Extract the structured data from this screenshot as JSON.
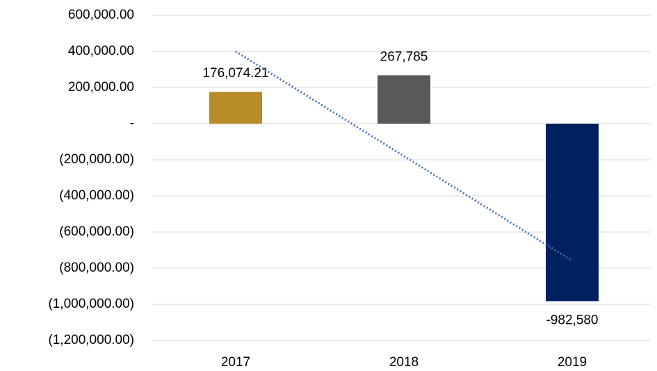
{
  "chart_data": {
    "type": "bar",
    "categories": [
      "2017",
      "2018",
      "2019"
    ],
    "series": [
      {
        "values": [
          176074.21,
          267785,
          -982580
        ],
        "value_labels": [
          "176,074.21",
          "267,785",
          "-982,580"
        ],
        "colors": [
          "#b68d27",
          "#595959",
          "#002060"
        ]
      }
    ],
    "trendline": {
      "type": "linear",
      "color": "#4472c4",
      "style": "dotted"
    },
    "ylim": [
      -1200000,
      600000
    ],
    "yticks": [
      {
        "value": 600000,
        "label": "600,000.00"
      },
      {
        "value": 400000,
        "label": "400,000.00"
      },
      {
        "value": 200000,
        "label": "200,000.00"
      },
      {
        "value": 0,
        "label": "-"
      },
      {
        "value": -200000,
        "label": "(200,000.00)"
      },
      {
        "value": -400000,
        "label": "(400,000.00)"
      },
      {
        "value": -600000,
        "label": "(600,000.00)"
      },
      {
        "value": -800000,
        "label": "(800,000.00)"
      },
      {
        "value": -1000000,
        "label": "(1,000,000.00)"
      },
      {
        "value": -1200000,
        "label": "(1,200,000.00)"
      }
    ],
    "grid": true
  }
}
